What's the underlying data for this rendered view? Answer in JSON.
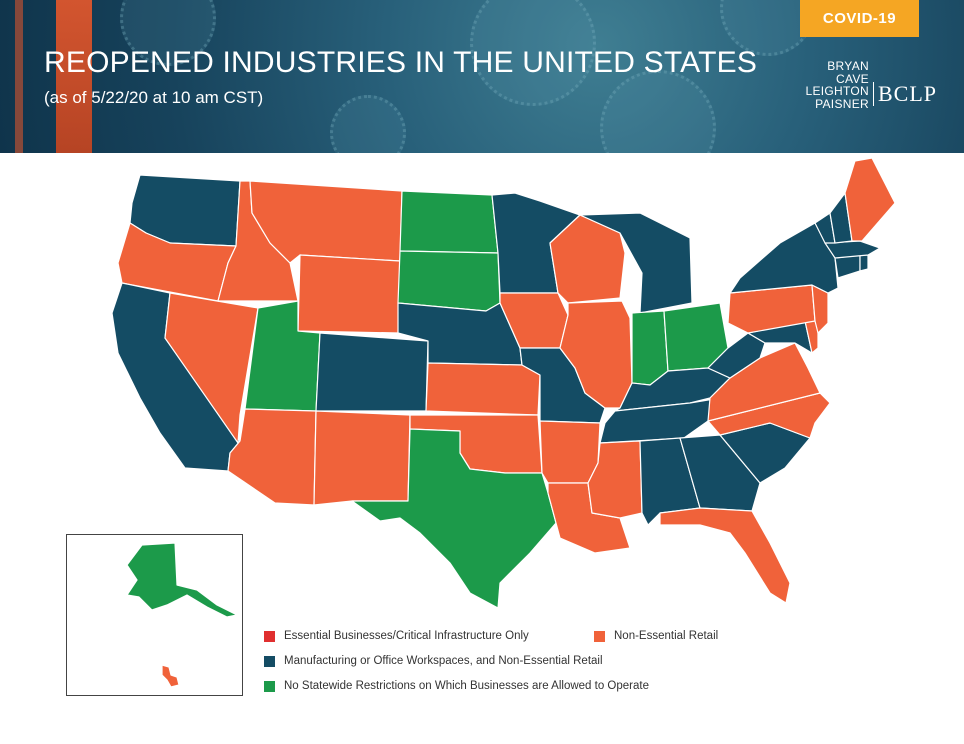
{
  "header": {
    "badge": "COVID-19",
    "title": "REOPENED INDUSTRIES IN THE UNITED STATES",
    "subtitle": "(as of 5/22/20 at 10 am CST)",
    "logo_words": [
      "BRYAN",
      "CAVE",
      "LEIGHTON",
      "PAISNER"
    ],
    "logo_mark": "BCLP"
  },
  "colors": {
    "essential": "#e02f2f",
    "retail": "#f0623a",
    "manufacturing": "#144c64",
    "no_restrictions": "#1c9a4a",
    "header_accent": "#e8582b",
    "badge": "#f5a623"
  },
  "legend": [
    {
      "key": "essential",
      "label": "Essential Businesses/Critical Infrastructure Only"
    },
    {
      "key": "retail",
      "label": "Non-Essential Retail"
    },
    {
      "key": "manufacturing",
      "label": "Manufacturing or Office Workspaces, and Non-Essential Retail"
    },
    {
      "key": "no_restrictions",
      "label": "No Statewide Restrictions on Which Businesses are Allowed to Operate"
    }
  ],
  "states": [
    {
      "name": "Washington",
      "category": "manufacturing"
    },
    {
      "name": "Oregon",
      "category": "retail"
    },
    {
      "name": "California",
      "category": "manufacturing"
    },
    {
      "name": "Nevada",
      "category": "retail"
    },
    {
      "name": "Idaho",
      "category": "retail"
    },
    {
      "name": "Montana",
      "category": "retail"
    },
    {
      "name": "Wyoming",
      "category": "retail"
    },
    {
      "name": "Utah",
      "category": "no_restrictions"
    },
    {
      "name": "Arizona",
      "category": "retail"
    },
    {
      "name": "Colorado",
      "category": "manufacturing"
    },
    {
      "name": "New Mexico",
      "category": "retail"
    },
    {
      "name": "North Dakota",
      "category": "no_restrictions"
    },
    {
      "name": "South Dakota",
      "category": "no_restrictions"
    },
    {
      "name": "Nebraska",
      "category": "manufacturing"
    },
    {
      "name": "Kansas",
      "category": "retail"
    },
    {
      "name": "Oklahoma",
      "category": "retail"
    },
    {
      "name": "Texas",
      "category": "no_restrictions"
    },
    {
      "name": "Minnesota",
      "category": "manufacturing"
    },
    {
      "name": "Iowa",
      "category": "retail"
    },
    {
      "name": "Missouri",
      "category": "manufacturing"
    },
    {
      "name": "Arkansas",
      "category": "retail"
    },
    {
      "name": "Louisiana",
      "category": "retail"
    },
    {
      "name": "Wisconsin",
      "category": "retail"
    },
    {
      "name": "Illinois",
      "category": "retail"
    },
    {
      "name": "Michigan",
      "category": "manufacturing"
    },
    {
      "name": "Indiana",
      "category": "no_restrictions"
    },
    {
      "name": "Ohio",
      "category": "no_restrictions"
    },
    {
      "name": "Kentucky",
      "category": "manufacturing"
    },
    {
      "name": "Tennessee",
      "category": "manufacturing"
    },
    {
      "name": "Mississippi",
      "category": "retail"
    },
    {
      "name": "Alabama",
      "category": "manufacturing"
    },
    {
      "name": "Georgia",
      "category": "manufacturing"
    },
    {
      "name": "Florida",
      "category": "retail"
    },
    {
      "name": "South Carolina",
      "category": "manufacturing"
    },
    {
      "name": "North Carolina",
      "category": "retail"
    },
    {
      "name": "Virginia",
      "category": "retail"
    },
    {
      "name": "West Virginia",
      "category": "manufacturing"
    },
    {
      "name": "Maryland",
      "category": "manufacturing"
    },
    {
      "name": "Delaware",
      "category": "retail"
    },
    {
      "name": "Pennsylvania",
      "category": "retail"
    },
    {
      "name": "New Jersey",
      "category": "retail"
    },
    {
      "name": "New York",
      "category": "manufacturing"
    },
    {
      "name": "Connecticut",
      "category": "manufacturing"
    },
    {
      "name": "Rhode Island",
      "category": "manufacturing"
    },
    {
      "name": "Massachusetts",
      "category": "manufacturing"
    },
    {
      "name": "Vermont",
      "category": "manufacturing"
    },
    {
      "name": "New Hampshire",
      "category": "manufacturing"
    },
    {
      "name": "Maine",
      "category": "retail"
    },
    {
      "name": "Alaska",
      "category": "no_restrictions"
    },
    {
      "name": "Hawaii",
      "category": "retail"
    }
  ]
}
